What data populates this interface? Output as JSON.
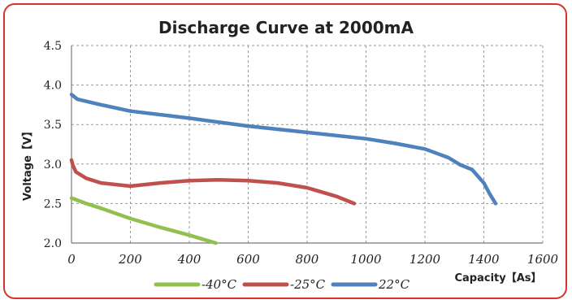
{
  "chart_data": {
    "type": "line",
    "title": "Discharge Curve at 2000mA",
    "xlabel": "Capacity【As】",
    "ylabel": "Voltage【V】",
    "xlim": [
      0,
      1600
    ],
    "ylim": [
      2.0,
      4.5
    ],
    "xticks": [
      "0",
      "200",
      "400",
      "600",
      "800",
      "1000",
      "1200",
      "1400",
      "1600"
    ],
    "yticks": [
      "2.0",
      "2.5",
      "3.0",
      "3.5",
      "4.0",
      "4.5"
    ],
    "grid": true,
    "legend_position": "bottom",
    "series": [
      {
        "name": "-40°C",
        "color": "#92c050",
        "points": [
          [
            0,
            2.57
          ],
          [
            50,
            2.5
          ],
          [
            100,
            2.44
          ],
          [
            200,
            2.31
          ],
          [
            300,
            2.2
          ],
          [
            400,
            2.1
          ],
          [
            490,
            2.0
          ]
        ]
      },
      {
        "name": "-25°C",
        "color": "#c0504d",
        "points": [
          [
            0,
            3.05
          ],
          [
            5,
            2.98
          ],
          [
            15,
            2.9
          ],
          [
            50,
            2.82
          ],
          [
            100,
            2.76
          ],
          [
            200,
            2.72
          ],
          [
            300,
            2.76
          ],
          [
            400,
            2.79
          ],
          [
            500,
            2.8
          ],
          [
            600,
            2.79
          ],
          [
            700,
            2.76
          ],
          [
            800,
            2.7
          ],
          [
            900,
            2.59
          ],
          [
            960,
            2.5
          ]
        ]
      },
      {
        "name": "22°C",
        "color": "#4f81bd",
        "points": [
          [
            0,
            3.88
          ],
          [
            20,
            3.82
          ],
          [
            100,
            3.75
          ],
          [
            200,
            3.67
          ],
          [
            400,
            3.58
          ],
          [
            600,
            3.48
          ],
          [
            800,
            3.4
          ],
          [
            1000,
            3.32
          ],
          [
            1100,
            3.26
          ],
          [
            1200,
            3.19
          ],
          [
            1280,
            3.08
          ],
          [
            1320,
            2.99
          ],
          [
            1360,
            2.93
          ],
          [
            1400,
            2.76
          ],
          [
            1420,
            2.62
          ],
          [
            1440,
            2.5
          ]
        ]
      }
    ]
  }
}
